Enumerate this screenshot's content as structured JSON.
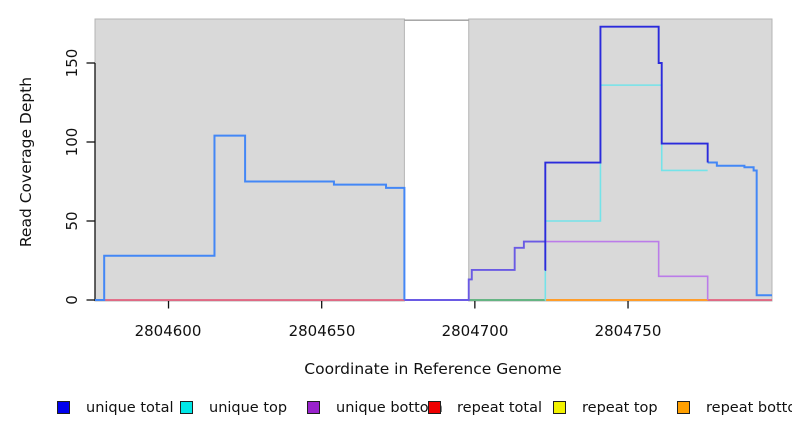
{
  "chart_data": {
    "type": "line",
    "title": "",
    "xlabel": "Coordinate in Reference Genome",
    "ylabel": "Read Coverage Depth",
    "xlim": [
      2804576,
      2804797
    ],
    "ylim": [
      0,
      180
    ],
    "x_ticks": [
      2804600,
      2804650,
      2804700,
      2804750
    ],
    "y_ticks": [
      0,
      50,
      100,
      150
    ],
    "grid": false,
    "legend_position": "bottom",
    "plot_background": "#ffffff",
    "shaded_regions": [
      {
        "name": "shaded-region-left",
        "x0": 2804576,
        "x1": 2804677,
        "fill": "#d9d9d9",
        "border": "#b4b4b4"
      },
      {
        "name": "shaded-region-right",
        "x0": 2804698,
        "x1": 2804797,
        "fill": "#d9d9d9",
        "border": "#b4b4b4"
      }
    ],
    "series": [
      {
        "name": "unique total",
        "color": "#0000ee",
        "step_points": [
          [
            2804576,
            0
          ],
          [
            2804579,
            28
          ],
          [
            2804615,
            104
          ],
          [
            2804625,
            75
          ],
          [
            2804654,
            73
          ],
          [
            2804671,
            71
          ],
          [
            2804677,
            0
          ],
          [
            2804698,
            13
          ],
          [
            2804699,
            19
          ],
          [
            2804713,
            33
          ],
          [
            2804716,
            37
          ],
          [
            2804723,
            87
          ],
          [
            2804741,
            173
          ],
          [
            2804760,
            150
          ],
          [
            2804761,
            99
          ],
          [
            2804776,
            87
          ],
          [
            2804779,
            85
          ],
          [
            2804788,
            84
          ],
          [
            2804791,
            82
          ],
          [
            2804792,
            3
          ],
          [
            2804797,
            3
          ]
        ]
      },
      {
        "name": "unique top",
        "color": "#00e6e6",
        "step_points": [
          [
            2804576,
            0
          ],
          [
            2804579,
            28
          ],
          [
            2804615,
            104
          ],
          [
            2804625,
            75
          ],
          [
            2804654,
            73
          ],
          [
            2804671,
            71
          ],
          [
            2804677,
            0
          ],
          [
            2804723,
            50
          ],
          [
            2804741,
            136
          ],
          [
            2804761,
            82
          ],
          [
            2804776,
            87
          ],
          [
            2804779,
            85
          ],
          [
            2804788,
            84
          ],
          [
            2804791,
            82
          ],
          [
            2804792,
            3
          ],
          [
            2804797,
            3
          ]
        ]
      },
      {
        "name": "unique bottom",
        "color": "#9922cc",
        "step_points": [
          [
            2804576,
            0
          ],
          [
            2804698,
            13
          ],
          [
            2804699,
            19
          ],
          [
            2804713,
            33
          ],
          [
            2804716,
            37
          ],
          [
            2804760,
            15
          ],
          [
            2804776,
            0
          ],
          [
            2804797,
            0
          ]
        ]
      },
      {
        "name": "repeat total",
        "color": "#ee0000",
        "step_points": [
          [
            2804576,
            0
          ],
          [
            2804797,
            0
          ]
        ]
      },
      {
        "name": "repeat top",
        "color": "#f2f200",
        "step_points": [
          [
            2804576,
            0
          ],
          [
            2804797,
            0
          ]
        ]
      },
      {
        "name": "repeat bottom",
        "color": "#ff9f00",
        "step_points": [
          [
            2804576,
            0
          ],
          [
            2804797,
            0
          ]
        ]
      }
    ],
    "render_lines": [
      {
        "name": "repeat-total-line",
        "color": "#e4607e",
        "width": 1.7,
        "step_points": [
          [
            2804576,
            0
          ],
          [
            2804797,
            0
          ]
        ]
      },
      {
        "name": "overlap-green-baseline",
        "color": "#55bd82",
        "width": 1.7,
        "step_points": [
          [
            2804698,
            0
          ],
          [
            2804723,
            0
          ]
        ]
      },
      {
        "name": "repeat-bottom-line",
        "color": "#ff9d2a",
        "width": 1.9,
        "step_points": [
          [
            2804723,
            0
          ],
          [
            2804776,
            0
          ]
        ]
      },
      {
        "name": "unique-total-bottom-overlap-line",
        "color": "#6a5ae4",
        "width": 1.9,
        "step_points": [
          [
            2804677,
            0
          ],
          [
            2804698,
            13
          ],
          [
            2804699,
            19
          ],
          [
            2804713,
            33
          ],
          [
            2804716,
            37
          ],
          [
            2804723,
            37
          ]
        ]
      },
      {
        "name": "unique-bottom-line",
        "color": "#bb7ce9",
        "width": 1.6,
        "step_points": [
          [
            2804723,
            37
          ],
          [
            2804760,
            15
          ],
          [
            2804776,
            0
          ]
        ]
      },
      {
        "name": "unique-top-line",
        "color": "#74e3e9",
        "width": 1.6,
        "step_points": [
          [
            2804722.8,
            0
          ],
          [
            2804723,
            50
          ],
          [
            2804741,
            136
          ],
          [
            2804761,
            82
          ],
          [
            2804776,
            82
          ]
        ]
      },
      {
        "name": "unique-total-top-overlap-line-left",
        "color": "#4387f6",
        "width": 2,
        "step_points": [
          [
            2804576,
            0
          ],
          [
            2804579,
            28
          ],
          [
            2804615,
            104
          ],
          [
            2804625,
            75
          ],
          [
            2804654,
            73
          ],
          [
            2804671,
            71
          ],
          [
            2804677,
            0
          ]
        ]
      },
      {
        "name": "unique-total-top-overlap-line-right",
        "color": "#4387f6",
        "width": 2,
        "step_points": [
          [
            2804776,
            87
          ],
          [
            2804779,
            85
          ],
          [
            2804788,
            84
          ],
          [
            2804791,
            82
          ],
          [
            2804792,
            3
          ],
          [
            2804797,
            3
          ]
        ]
      },
      {
        "name": "unique-total-line",
        "color": "#2b2bdc",
        "width": 1.9,
        "step_points": [
          [
            2804722.8,
            19
          ],
          [
            2804723,
            87
          ],
          [
            2804741,
            173
          ],
          [
            2804760,
            150
          ],
          [
            2804761,
            99
          ],
          [
            2804776,
            87
          ]
        ]
      }
    ]
  },
  "legend": {
    "items": [
      {
        "label": "unique total",
        "color": "#0000ee"
      },
      {
        "label": "unique top",
        "color": "#00e6e6"
      },
      {
        "label": "unique bottom",
        "color": "#9922cc"
      },
      {
        "label": "repeat total",
        "color": "#ee0000"
      },
      {
        "label": "repeat top",
        "color": "#f2f200"
      },
      {
        "label": "repeat bottom",
        "color": "#ff9f00"
      }
    ]
  }
}
